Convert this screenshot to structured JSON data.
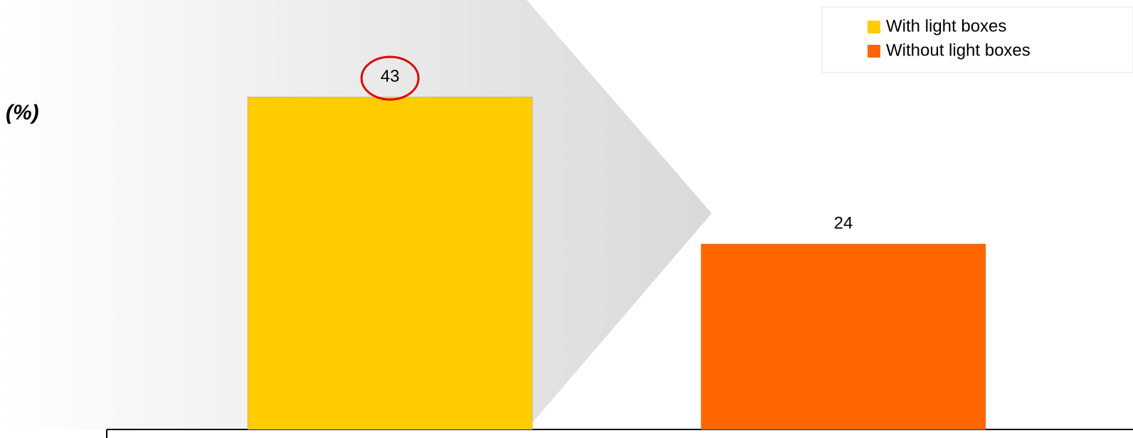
{
  "chart_data": {
    "type": "bar",
    "y_label": "(%)",
    "categories": [
      null
    ],
    "series": [
      {
        "name": "With light boxes",
        "color": "#ffcc00",
        "values": [
          43
        ]
      },
      {
        "name": "Without light boxes",
        "color": "#ff6600",
        "values": [
          24
        ]
      }
    ],
    "ylim": [
      0,
      55
    ],
    "legend": "top-right"
  }
}
